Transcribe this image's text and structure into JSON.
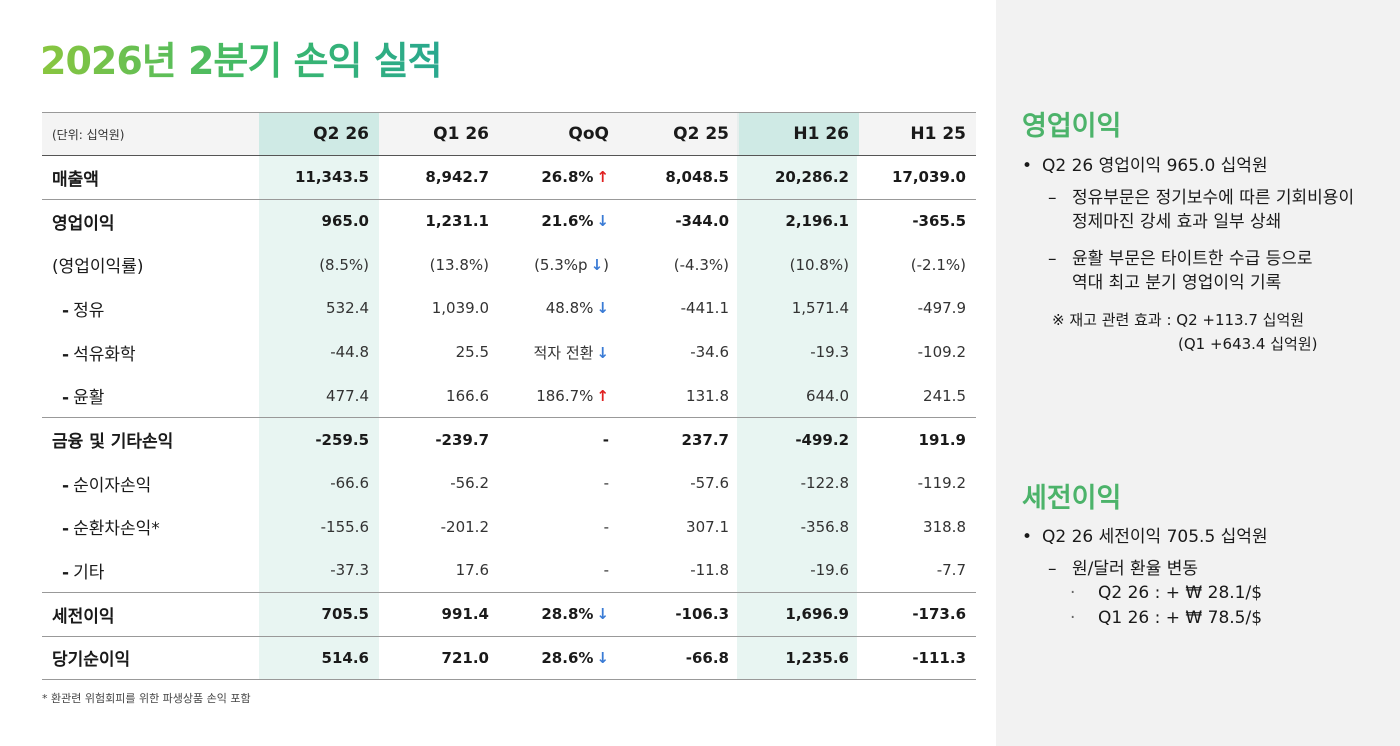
{
  "title": "2026년 2분기 손익 실적",
  "table": {
    "unit": "(단위: 십억원)",
    "headers": [
      "Q2 26",
      "Q1 26",
      "QoQ",
      "Q2 25",
      "H1 26",
      "H1 25"
    ],
    "rows": [
      {
        "label": "매출액",
        "cells": [
          "11,343.5",
          "8,942.7",
          "26.8%",
          "8,048.5",
          "20,286.2",
          "17,039.0"
        ],
        "arrow": "↑"
      },
      {
        "label": "영업이익",
        "cells": [
          "965.0",
          "1,231.1",
          "21.6%",
          "-344.0",
          "2,196.1",
          "-365.5"
        ],
        "arrow": "↓"
      },
      {
        "label": "(영업이익률)",
        "cells": [
          "(8.5%)",
          "(13.8%)",
          "(5.3%p",
          "(-4.3%)",
          "(10.8%)",
          "(-2.1%)"
        ],
        "arrow": "↓",
        "qoq_suffix": ")"
      },
      {
        "label": "정유",
        "cells": [
          "532.4",
          "1,039.0",
          "48.8%",
          "-441.1",
          "1,571.4",
          "-497.9"
        ],
        "arrow": "↓"
      },
      {
        "label": "석유화학",
        "cells": [
          "-44.8",
          "25.5",
          "적자 전환",
          "-34.6",
          "-19.3",
          "-109.2"
        ],
        "arrow": "↓"
      },
      {
        "label": "윤활",
        "cells": [
          "477.4",
          "166.6",
          "186.7%",
          "131.8",
          "644.0",
          "241.5"
        ],
        "arrow": "↑"
      },
      {
        "label": "금융 및 기타손익",
        "cells": [
          "-259.5",
          "-239.7",
          "-",
          "237.7",
          "-499.2",
          "191.9"
        ]
      },
      {
        "label": "순이자손익",
        "cells": [
          "-66.6",
          "-56.2",
          "-",
          "-57.6",
          "-122.8",
          "-119.2"
        ]
      },
      {
        "label": "순환차손익*",
        "cells": [
          "-155.6",
          "-201.2",
          "-",
          "307.1",
          "-356.8",
          "318.8"
        ]
      },
      {
        "label": "기타",
        "cells": [
          "-37.3",
          "17.6",
          "-",
          "-11.8",
          "-19.6",
          "-7.7"
        ]
      },
      {
        "label": "세전이익",
        "cells": [
          "705.5",
          "991.4",
          "28.8%",
          "-106.3",
          "1,696.9",
          "-173.6"
        ],
        "arrow": "↓"
      },
      {
        "label": "당기순이익",
        "cells": [
          "514.6",
          "721.0",
          "28.6%",
          "-66.8",
          "1,235.6",
          "-111.3"
        ],
        "arrow": "↓"
      }
    ],
    "sub_dash": "-"
  },
  "footnote": "* 환관련 위험회피를 위한 파생상품 손익 포함",
  "side": {
    "op": {
      "heading": "영업이익",
      "bullet": "Q2 26 영업이익 965.0 십억원",
      "dash1_line1": "정유부문은 정기보수에 따른 기회비용이",
      "dash1_line2": "정제마진 강세 효과 일부 상쇄",
      "dash2_line1": "윤활 부문은 타이트한 수급 등으로",
      "dash2_line2": "역대 최고 분기 영업이익 기록",
      "note_line1": "※ 재고 관련 효과 : Q2 +113.7 십억원",
      "note_line2": "(Q1 +643.4 십억원)"
    },
    "pretax": {
      "heading": "세전이익",
      "bullet": "Q2 26 세전이익 705.5 십억원",
      "dash1": "원/달러 환율 변동",
      "sub1": "Q2 26 : + ₩ 28.1/$",
      "sub2": "Q1 26 : + ₩ 78.5/$"
    },
    "bullet_mark": "•",
    "dash_mark": "–",
    "sub_mark": "·"
  }
}
